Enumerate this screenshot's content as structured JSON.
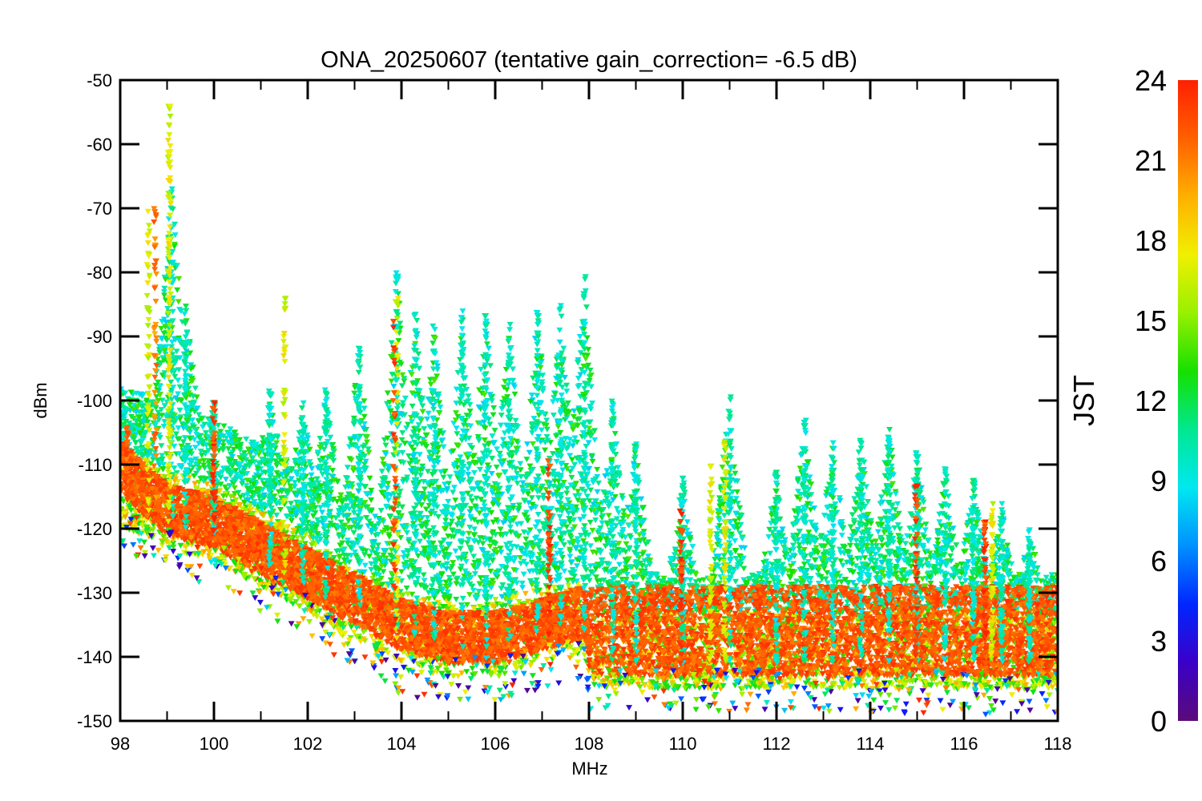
{
  "chart_data": {
    "type": "scatter",
    "title": "ONA_20250607 (tentative gain_correction= -6.5 dB)",
    "xlabel": "MHz",
    "ylabel": "dBm",
    "xlim": [
      98,
      118
    ],
    "ylim": [
      -150,
      -50
    ],
    "xticks": [
      "98",
      "100",
      "102",
      "104",
      "106",
      "108",
      "110",
      "112",
      "114",
      "116",
      "118"
    ],
    "yticks": [
      "-50",
      "-60",
      "-70",
      "-80",
      "-90",
      "-100",
      "-110",
      "-120",
      "-130",
      "-140",
      "-150"
    ],
    "colorbar": {
      "label": "JST",
      "range": [
        0,
        24
      ],
      "ticks": [
        "0",
        "3",
        "6",
        "9",
        "12",
        "15",
        "18",
        "21",
        "24"
      ],
      "colormap": [
        "#5b0a7a",
        "#3a00c8",
        "#0026ff",
        "#0090ff",
        "#00e8f0",
        "#00e890",
        "#16e000",
        "#98f000",
        "#f0f000",
        "#ffb000",
        "#ff6000",
        "#ff2000"
      ]
    },
    "marker": "downward-triangle",
    "grid": false,
    "noise_floor": {
      "description_points": [
        [
          98.0,
          -116
        ],
        [
          98.5,
          -117
        ],
        [
          99.0,
          -119
        ],
        [
          100.0,
          -121
        ],
        [
          101.0,
          -125
        ],
        [
          102.0,
          -129
        ],
        [
          103.0,
          -134
        ],
        [
          104.0,
          -138
        ],
        [
          105.0,
          -139
        ],
        [
          106.0,
          -139
        ],
        [
          107.0,
          -137
        ],
        [
          107.9,
          -136
        ],
        [
          108.0,
          -141
        ],
        [
          110.0,
          -141
        ],
        [
          112.0,
          -141
        ],
        [
          114.0,
          -141
        ],
        [
          116.0,
          -141
        ],
        [
          118.0,
          -141
        ]
      ]
    },
    "series": [
      {
        "hour_color": 22,
        "x": [
          98.0,
          98.5,
          99.0,
          100.0,
          101.0,
          102.0,
          103.0,
          104.0,
          105.0,
          106.0,
          107.0,
          107.9,
          108.0,
          110.0,
          112.0,
          114.0,
          116.0,
          118.0
        ],
        "y": [
          -110,
          -114,
          -117,
          -119,
          -123,
          -127,
          -131,
          -135,
          -137,
          -137,
          -135,
          -133,
          -136,
          -136,
          -136,
          -136,
          -136,
          -136
        ]
      },
      {
        "hour_color": 10,
        "peaks": [
          [
            99.1,
            -66
          ],
          [
            99.4,
            -85
          ],
          [
            100.0,
            -100
          ],
          [
            101.2,
            -98
          ],
          [
            101.9,
            -100
          ],
          [
            102.4,
            -98
          ],
          [
            103.1,
            -91
          ],
          [
            103.9,
            -79
          ],
          [
            104.3,
            -86
          ],
          [
            104.7,
            -88
          ],
          [
            105.3,
            -86
          ],
          [
            105.8,
            -85
          ],
          [
            106.3,
            -87
          ],
          [
            106.9,
            -85
          ],
          [
            107.4,
            -85
          ],
          [
            107.9,
            -80
          ],
          [
            108.5,
            -100
          ],
          [
            109.0,
            -106
          ],
          [
            110.0,
            -112
          ],
          [
            111.0,
            -99
          ],
          [
            112.0,
            -111
          ],
          [
            112.6,
            -103
          ],
          [
            113.2,
            -106
          ],
          [
            113.8,
            -105
          ],
          [
            114.4,
            -104
          ],
          [
            115.0,
            -108
          ],
          [
            115.6,
            -110
          ],
          [
            116.2,
            -112
          ],
          [
            116.8,
            -116
          ],
          [
            117.4,
            -120
          ]
        ]
      },
      {
        "hour_color": 17,
        "peaks": [
          [
            98.6,
            -70
          ],
          [
            99.05,
            -54
          ],
          [
            101.5,
            -84
          ],
          [
            103.9,
            -83
          ],
          [
            110.6,
            -110
          ],
          [
            110.9,
            -106
          ],
          [
            116.6,
            -116
          ]
        ]
      }
    ],
    "features": [
      {
        "x": 98.15,
        "y": -104,
        "hour_color": 22
      },
      {
        "x": 99.05,
        "y": -54,
        "hour_color": 17
      },
      {
        "x": 98.75,
        "y": -70,
        "hour_color": 21
      },
      {
        "x": 100.0,
        "y": -100,
        "hour_color": 23
      },
      {
        "x": 103.85,
        "y": -86,
        "hour_color": 23
      },
      {
        "x": 107.15,
        "y": -109,
        "hour_color": 23
      },
      {
        "x": 109.97,
        "y": -116,
        "hour_color": 23
      },
      {
        "x": 114.98,
        "y": -113,
        "hour_color": 23
      },
      {
        "x": 116.45,
        "y": -118,
        "hour_color": 23
      }
    ]
  }
}
